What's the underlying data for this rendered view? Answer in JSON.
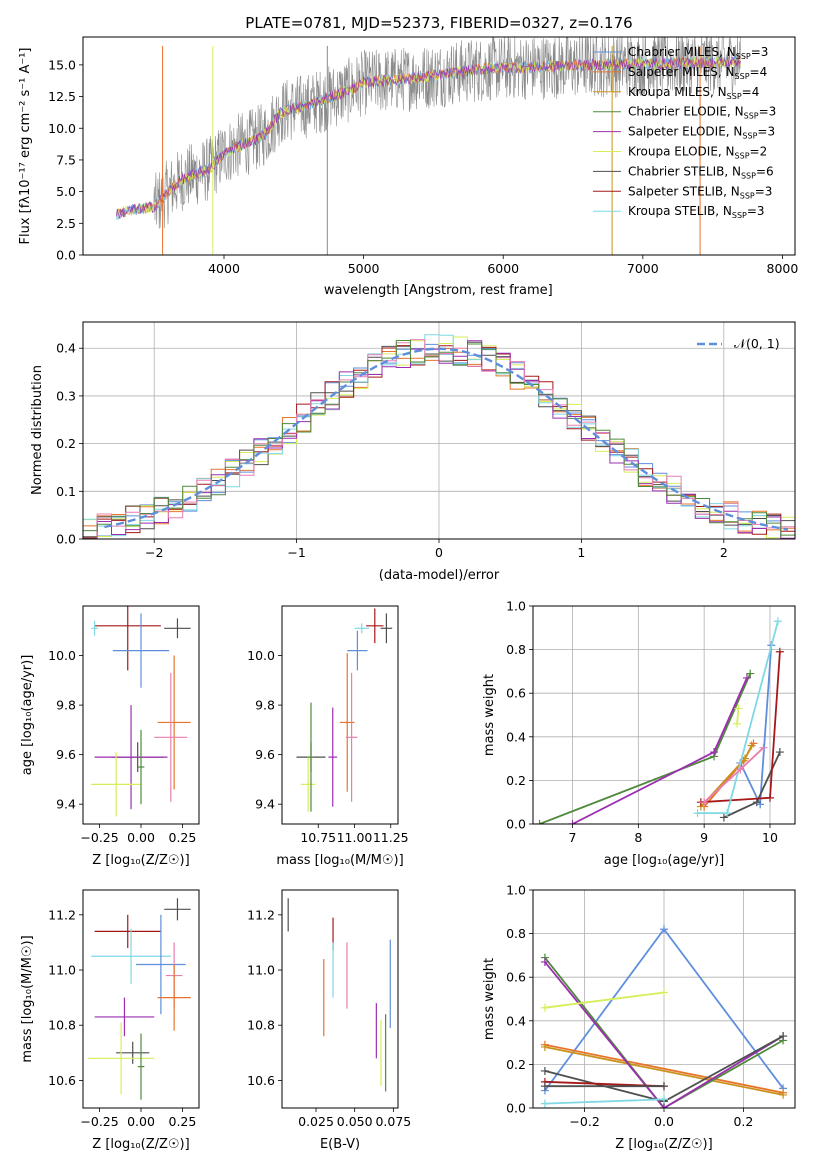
{
  "figure_title": "PLATE=0781, MJD=52373, FIBERID=0327, z=0.176",
  "colors": {
    "Chabrier MILES": "#5f8fdc",
    "Salpeter MILES": "#e8742c",
    "Kroupa MILES": "#c9921a",
    "Chabrier ELODIE": "#4f8a3c",
    "Salpeter ELODIE": "#9b2fb0",
    "Kroupa ELODIE": "#d6ee58",
    "Chabrier STELIB": "#4f4f4f",
    "Salpeter STELIB": "#a51818",
    "Kroupa STELIB": "#7fd8e4",
    "Pink": "#e87fb0",
    "Normal": "#5f8fdc"
  },
  "chart_data": [
    {
      "id": "spectrum",
      "type": "line",
      "title": "PLATE=0781, MJD=52373, FIBERID=0327, z=0.176",
      "xlabel": "wavelength [Angstrom, rest frame]",
      "ylabel": "Flux [fλ10⁻¹⁷ erg cm⁻² s⁻¹ A⁻¹]",
      "xlim": [
        2990,
        8090
      ],
      "ylim": [
        0,
        17.2
      ],
      "xticks": [
        4000,
        5000,
        6000,
        7000,
        8000
      ],
      "yticks": [
        0.0,
        2.5,
        5.0,
        7.5,
        10.0,
        12.5,
        15.0
      ],
      "grid": false,
      "legend_position": "top-right",
      "legend": [
        "Chabrier MILES, N_SSP=3",
        "Salpeter MILES, N_SSP=4",
        "Kroupa MILES, N_SSP=4",
        "Chabrier ELODIE, N_SSP=3",
        "Salpeter ELODIE, N_SSP=3",
        "Kroupa ELODIE, N_SSP=2",
        "Chabrier STELIB, N_SSP=6",
        "Salpeter STELIB, N_SSP=3",
        "Kroupa STELIB, N_SSP=3"
      ],
      "envelope": [
        [
          3230,
          3.2
        ],
        [
          3350,
          3.6
        ],
        [
          3500,
          3.8
        ],
        [
          3600,
          5.0
        ],
        [
          3700,
          6.0
        ],
        [
          3800,
          6.4
        ],
        [
          3900,
          6.8
        ],
        [
          4000,
          8.0
        ],
        [
          4100,
          8.6
        ],
        [
          4200,
          9.0
        ],
        [
          4300,
          9.6
        ],
        [
          4400,
          11.2
        ],
        [
          4500,
          11.6
        ],
        [
          4600,
          11.8
        ],
        [
          4700,
          12.2
        ],
        [
          4800,
          12.6
        ],
        [
          4900,
          13.0
        ],
        [
          5000,
          13.6
        ],
        [
          5200,
          13.8
        ],
        [
          5400,
          14.0
        ],
        [
          5600,
          14.3
        ],
        [
          5800,
          14.6
        ],
        [
          6000,
          14.8
        ],
        [
          6200,
          14.8
        ],
        [
          6400,
          14.9
        ],
        [
          6600,
          15.0
        ],
        [
          6800,
          15.0
        ],
        [
          7000,
          15.1
        ],
        [
          7200,
          15.1
        ],
        [
          7400,
          15.2
        ],
        [
          7600,
          15.2
        ],
        [
          7700,
          15.3
        ]
      ]
    },
    {
      "id": "residuals",
      "type": "histogram",
      "xlabel": "(data-model)/error",
      "ylabel": "Normed distribution",
      "xlim": [
        -2.5,
        2.5
      ],
      "ylim": [
        0,
        0.455
      ],
      "xticks": [
        -2,
        -1,
        0,
        1,
        2
      ],
      "yticks": [
        0.0,
        0.1,
        0.2,
        0.3,
        0.4
      ],
      "grid": true,
      "legend": [
        "N(0,1)"
      ],
      "legend_position": "top-right",
      "bin_width": 0.1
    },
    {
      "id": "age_vs_Z",
      "type": "errorbar",
      "xlabel": "Z [log10(Z/Z☉)]",
      "ylabel": "age  [log10(age/yr)]",
      "xlim": [
        -0.35,
        0.35
      ],
      "ylim": [
        9.32,
        10.2
      ],
      "xticks": [
        -0.25,
        0.0,
        0.25
      ],
      "yticks": [
        9.4,
        9.6,
        9.8,
        10.0
      ],
      "points": [
        {
          "c": "Chabrier STELIB",
          "x": 0.22,
          "y": 10.11,
          "xe": 0.08,
          "ye": 0.04
        },
        {
          "c": "Salpeter STELIB",
          "x": -0.08,
          "y": 10.12,
          "xe": 0.2,
          "ye": 0.18
        },
        {
          "c": "Chabrier MILES",
          "x": 0.0,
          "y": 10.02,
          "xe": 0.17,
          "ye": 0.15
        },
        {
          "c": "Kroupa STELIB",
          "x": -0.28,
          "y": 10.11,
          "xe": 0.02,
          "ye": 0.03
        },
        {
          "c": "Salpeter MILES",
          "x": 0.2,
          "y": 9.73,
          "xe": 0.1,
          "ye": 0.27
        },
        {
          "c": "Pink",
          "x": 0.18,
          "y": 9.67,
          "xe": 0.1,
          "ye": 0.26
        },
        {
          "c": "Chabrier STELIB",
          "x": -0.02,
          "y": 9.59,
          "xe": 0.16,
          "ye": 0.06
        },
        {
          "c": "Salpeter ELODIE",
          "x": -0.06,
          "y": 9.59,
          "xe": 0.22,
          "ye": 0.21
        },
        {
          "c": "Kroupa ELODIE",
          "x": -0.15,
          "y": 9.48,
          "xe": 0.15,
          "ye": 0.13
        },
        {
          "c": "Chabrier ELODIE",
          "x": 0.0,
          "y": 9.55,
          "xe": 0.02,
          "ye": 0.15
        }
      ]
    },
    {
      "id": "age_vs_mass",
      "type": "errorbar",
      "xlabel": "mass [log10(M/M☉)]",
      "ylabel": "",
      "xlim": [
        10.5,
        11.3
      ],
      "ylim": [
        9.32,
        10.2
      ],
      "xticks": [
        10.75,
        11.0,
        11.25
      ],
      "yticks": [
        9.4,
        9.6,
        9.8,
        10.0
      ],
      "points": [
        {
          "c": "Chabrier STELIB",
          "x": 11.22,
          "y": 10.11,
          "xe": 0.04,
          "ye": 0.06
        },
        {
          "c": "Salpeter STELIB",
          "x": 11.14,
          "y": 10.12,
          "xe": 0.06,
          "ye": 0.07
        },
        {
          "c": "Chabrier MILES",
          "x": 11.02,
          "y": 10.02,
          "xe": 0.07,
          "ye": 0.08
        },
        {
          "c": "Kroupa STELIB",
          "x": 11.05,
          "y": 10.11,
          "xe": 0.05,
          "ye": 0.02
        },
        {
          "c": "Salpeter MILES",
          "x": 10.95,
          "y": 9.73,
          "xe": 0.05,
          "ye": 0.28
        },
        {
          "c": "Pink",
          "x": 10.98,
          "y": 9.67,
          "xe": 0.04,
          "ye": 0.26
        },
        {
          "c": "Chabrier STELIB",
          "x": 10.7,
          "y": 9.59,
          "xe": 0.1,
          "ye": 0.06
        },
        {
          "c": "Salpeter ELODIE",
          "x": 10.85,
          "y": 9.59,
          "xe": 0.03,
          "ye": 0.2
        },
        {
          "c": "Kroupa ELODIE",
          "x": 10.68,
          "y": 9.48,
          "xe": 0.05,
          "ye": 0.11
        },
        {
          "c": "Chabrier ELODIE",
          "x": 10.7,
          "y": 9.59,
          "xe": 0.02,
          "ye": 0.22
        }
      ]
    },
    {
      "id": "weight_vs_age",
      "type": "line",
      "xlabel": "age  [log10(age/yr)]",
      "ylabel": "mass weight",
      "xlim": [
        6.4,
        10.38
      ],
      "ylim": [
        0,
        1.0
      ],
      "xticks": [
        7,
        8,
        9,
        10
      ],
      "yticks": [
        0.0,
        0.2,
        0.4,
        0.6,
        0.8,
        1.0
      ],
      "grid": true,
      "series": [
        {
          "c": "Chabrier MILES",
          "x": [
            9.55,
            9.85,
            10.02
          ],
          "y": [
            0.28,
            0.09,
            0.82
          ]
        },
        {
          "c": "Salpeter MILES",
          "x": [
            9.0,
            9.6,
            9.75
          ],
          "y": [
            0.08,
            0.29,
            0.37
          ]
        },
        {
          "c": "Kroupa MILES",
          "x": [
            8.95,
            9.62,
            9.72
          ],
          "y": [
            0.08,
            0.3,
            0.36
          ]
        },
        {
          "c": "Chabrier ELODIE",
          "x": [
            6.5,
            9.15,
            9.7
          ],
          "y": [
            0.0,
            0.31,
            0.69
          ]
        },
        {
          "c": "Salpeter ELODIE",
          "x": [
            7.0,
            9.15,
            9.65
          ],
          "y": [
            0.0,
            0.33,
            0.67
          ]
        },
        {
          "c": "Kroupa ELODIE",
          "x": [
            9.5,
            9.52
          ],
          "y": [
            0.46,
            0.53
          ]
        },
        {
          "c": "Chabrier STELIB",
          "x": [
            9.3,
            9.8,
            10.15
          ],
          "y": [
            0.03,
            0.1,
            0.33
          ]
        },
        {
          "c": "Salpeter STELIB",
          "x": [
            8.95,
            10.0,
            10.15
          ],
          "y": [
            0.1,
            0.12,
            0.79
          ]
        },
        {
          "c": "Kroupa STELIB",
          "x": [
            8.9,
            9.35,
            10.12
          ],
          "y": [
            0.05,
            0.05,
            0.93
          ]
        },
        {
          "c": "Pink",
          "x": [
            9.0,
            9.55,
            9.9
          ],
          "y": [
            0.1,
            0.25,
            0.35
          ]
        }
      ]
    },
    {
      "id": "mass_vs_Z",
      "type": "errorbar",
      "xlabel": "Z [log10(Z/Z☉)]",
      "ylabel": "mass [log10(M/M☉)]",
      "xlim": [
        -0.35,
        0.35
      ],
      "ylim": [
        10.5,
        11.29
      ],
      "xticks": [
        -0.25,
        0.0,
        0.25
      ],
      "yticks": [
        10.6,
        10.8,
        11.0,
        11.2
      ],
      "points": [
        {
          "c": "Chabrier STELIB",
          "x": 0.22,
          "y": 11.22,
          "xe": 0.08,
          "ye": 0.04
        },
        {
          "c": "Salpeter STELIB",
          "x": -0.08,
          "y": 11.14,
          "xe": 0.2,
          "ye": 0.06
        },
        {
          "c": "Kroupa STELIB",
          "x": -0.06,
          "y": 11.05,
          "xe": 0.24,
          "ye": 0.1
        },
        {
          "c": "Chabrier MILES",
          "x": 0.12,
          "y": 11.02,
          "xe": 0.15,
          "ye": 0.18
        },
        {
          "c": "Pink",
          "x": 0.2,
          "y": 10.98,
          "xe": 0.05,
          "ye": 0.12
        },
        {
          "c": "Salpeter MILES",
          "x": 0.2,
          "y": 10.9,
          "xe": 0.1,
          "ye": 0.12
        },
        {
          "c": "Salpeter ELODIE",
          "x": -0.1,
          "y": 10.83,
          "xe": 0.18,
          "ye": 0.07
        },
        {
          "c": "Chabrier STELIB",
          "x": -0.05,
          "y": 10.7,
          "xe": 0.1,
          "ye": 0.04
        },
        {
          "c": "Kroupa ELODIE",
          "x": -0.12,
          "y": 10.68,
          "xe": 0.2,
          "ye": 0.13
        },
        {
          "c": "Chabrier ELODIE",
          "x": 0.0,
          "y": 10.65,
          "xe": 0.02,
          "ye": 0.12
        }
      ]
    },
    {
      "id": "mass_vs_EBV",
      "type": "errorbar",
      "xlabel": "E(B-V)",
      "ylabel": "",
      "xlim": [
        0.003,
        0.078
      ],
      "ylim": [
        10.5,
        11.29
      ],
      "xticks": [
        0.025,
        0.05,
        0.075
      ],
      "yticks": [
        10.6,
        10.8,
        11.0,
        11.2
      ],
      "points": [
        {
          "c": "Chabrier STELIB",
          "x": 0.007,
          "y": 11.2,
          "xe": 0,
          "ye": 0.06
        },
        {
          "c": "Salpeter STELIB",
          "x": 0.036,
          "y": 11.13,
          "xe": 0,
          "ye": 0.06
        },
        {
          "c": "Kroupa STELIB",
          "x": 0.036,
          "y": 11.0,
          "xe": 0,
          "ye": 0.1
        },
        {
          "c": "Salpeter MILES",
          "x": 0.03,
          "y": 10.9,
          "xe": 0,
          "ye": 0.14
        },
        {
          "c": "Pink",
          "x": 0.045,
          "y": 10.98,
          "xe": 0,
          "ye": 0.12
        },
        {
          "c": "Salpeter ELODIE",
          "x": 0.064,
          "y": 10.78,
          "xe": 0,
          "ye": 0.1
        },
        {
          "c": "Kroupa ELODIE",
          "x": 0.067,
          "y": 10.7,
          "xe": 0,
          "ye": 0.12
        },
        {
          "c": "Chabrier ELODIE",
          "x": 0.07,
          "y": 10.7,
          "xe": 0,
          "ye": 0.14
        },
        {
          "c": "Chabrier MILES",
          "x": 0.073,
          "y": 10.95,
          "xe": 0,
          "ye": 0.16
        }
      ]
    },
    {
      "id": "weight_vs_Z",
      "type": "line",
      "xlabel": "Z [log10(Z/Z☉)]",
      "ylabel": "mass weight",
      "xlim": [
        -0.33,
        0.33
      ],
      "ylim": [
        0,
        1.0
      ],
      "xticks": [
        -0.2,
        0.0,
        0.2
      ],
      "yticks": [
        0.0,
        0.2,
        0.4,
        0.6,
        0.8,
        1.0
      ],
      "grid": true,
      "series": [
        {
          "c": "Chabrier MILES",
          "x": [
            -0.3,
            0.0,
            0.3
          ],
          "y": [
            0.08,
            0.82,
            0.09
          ]
        },
        {
          "c": "Salpeter MILES",
          "x": [
            -0.3,
            0.3
          ],
          "y": [
            0.29,
            0.07
          ]
        },
        {
          "c": "Kroupa MILES",
          "x": [
            -0.3,
            0.3
          ],
          "y": [
            0.28,
            0.06
          ]
        },
        {
          "c": "Chabrier ELODIE",
          "x": [
            -0.3,
            0.0,
            0.3
          ],
          "y": [
            0.69,
            0.0,
            0.31
          ]
        },
        {
          "c": "Salpeter ELODIE",
          "x": [
            -0.3,
            0.0,
            0.3
          ],
          "y": [
            0.67,
            0.0,
            0.33
          ]
        },
        {
          "c": "Kroupa ELODIE",
          "x": [
            -0.3,
            0.0
          ],
          "y": [
            0.46,
            0.53
          ]
        },
        {
          "c": "Chabrier STELIB",
          "x": [
            -0.3,
            0.0,
            0.3
          ],
          "y": [
            0.17,
            0.03,
            0.33
          ]
        },
        {
          "c": "Salpeter STELIB",
          "x": [
            -0.3,
            0.0
          ],
          "y": [
            0.12,
            0.1
          ]
        },
        {
          "c": "Kroupa STELIB",
          "x": [
            -0.3,
            0.0
          ],
          "y": [
            0.02,
            0.04
          ]
        },
        {
          "c": "Chabrier STELIB",
          "x": [
            -0.3,
            0.0
          ],
          "y": [
            0.1,
            0.1
          ]
        }
      ]
    }
  ]
}
